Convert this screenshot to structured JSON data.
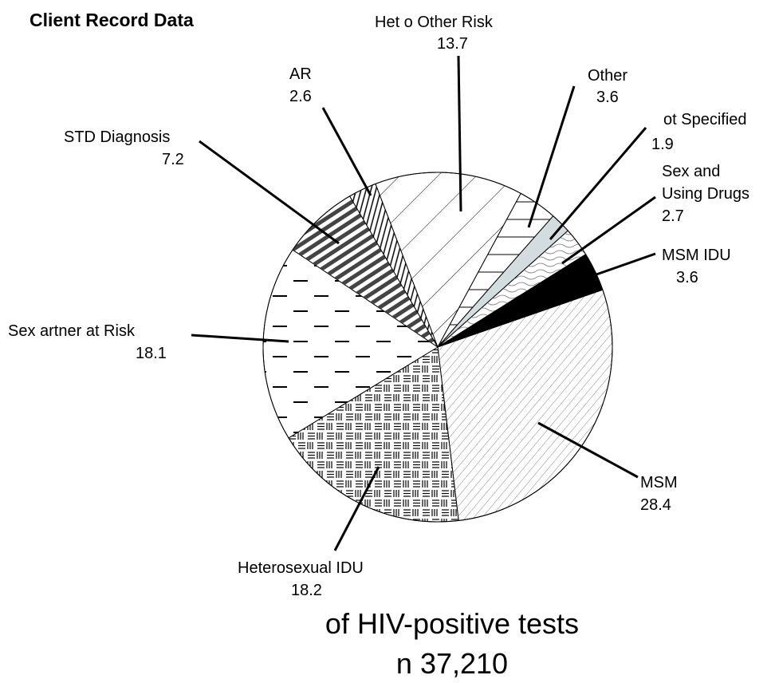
{
  "chart_data": {
    "type": "pie",
    "title": "Client Record Data",
    "categories": [
      "Het o Other Risk",
      "Other",
      "ot Specified",
      "Sex and\nUsing Drugs",
      "MSM IDU",
      "MSM",
      "Heterosexual IDU",
      "Sex artner at Risk",
      "STD Diagnosis",
      "AR"
    ],
    "values": [
      13.7,
      3.6,
      1.9,
      2.7,
      3.6,
      28.4,
      18.2,
      18.1,
      7.2,
      2.6
    ],
    "colors": [
      "#ffffff",
      "#ffffff",
      "#d3dde0",
      "#ffffff",
      "#000000",
      "#ffffff",
      "#ffffff",
      "#ffffff",
      "#ffffff",
      "#ffffff"
    ],
    "annotations": [
      "of HIV-positive tests",
      "n 37,210"
    ]
  }
}
